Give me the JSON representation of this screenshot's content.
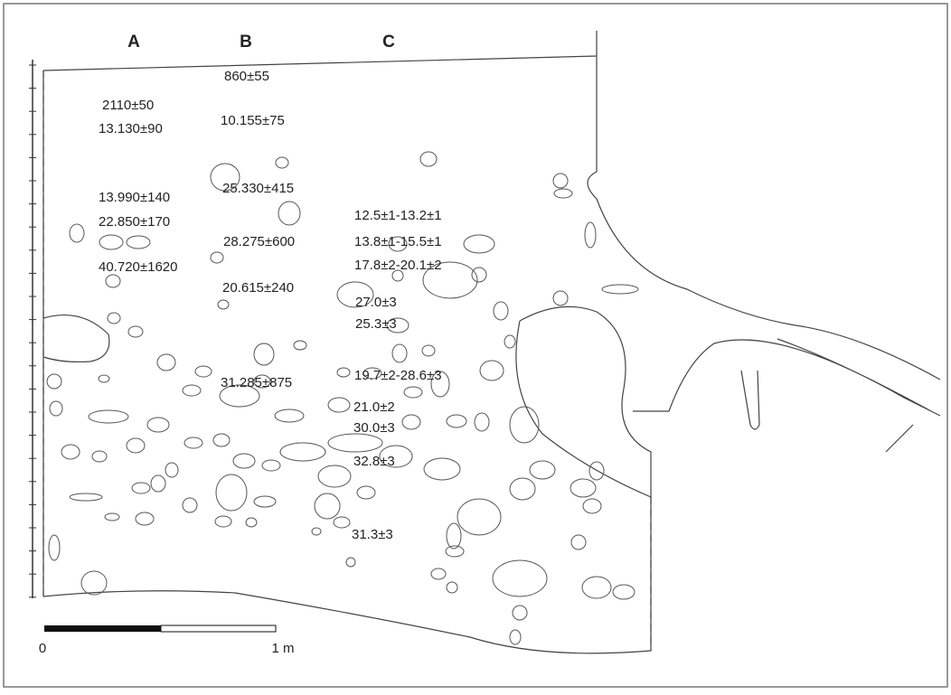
{
  "columns": [
    "A",
    "B",
    "C"
  ],
  "dates": [
    "860±55",
    "2110±50",
    "13.130±90",
    "10.155±75",
    "13.990±140",
    "22.850±170",
    "25.330±415",
    "12.5±1-13.2±1",
    "28.275±600",
    "13.8±1-15.5±1",
    "40.720±1620",
    "17.8±2-20.1±2",
    "20.615±240",
    "27.0±3",
    "25.3±3",
    "19.7±2-28.6±3",
    "31.285±875",
    "21.0±2",
    "30.0±3",
    "32.8±3",
    "31.3±3"
  ],
  "scale": {
    "start": "0",
    "end": "1 m"
  }
}
